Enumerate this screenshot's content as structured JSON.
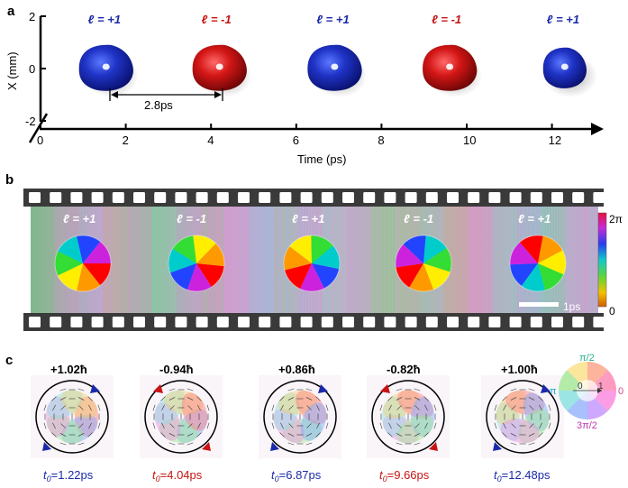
{
  "panel_a": {
    "label": "a",
    "y_axis_label": "X (mm)",
    "y_ticks": [
      "2",
      "0",
      "-2"
    ],
    "x_axis_label": "Time (ps)",
    "x_ticks": [
      "0",
      "2",
      "4",
      "6",
      "8",
      "10",
      "12"
    ],
    "period_label": "2.8ps",
    "pulses": [
      {
        "label": "ℓ = +1",
        "color": "#1a2aa8",
        "time": 1.6
      },
      {
        "label": "ℓ = -1",
        "color": "#c81414",
        "time": 4.2
      },
      {
        "label": "ℓ = +1",
        "color": "#1a2aa8",
        "time": 6.9
      },
      {
        "label": "ℓ = -1",
        "color": "#c81414",
        "time": 9.6
      },
      {
        "label": "ℓ = +1",
        "color": "#1a2aa8",
        "time": 12.3
      }
    ]
  },
  "panel_b": {
    "label": "b",
    "frame_labels": [
      "ℓ = +1",
      "ℓ = -1",
      "ℓ = +1",
      "ℓ = -1",
      "ℓ = +1"
    ],
    "colorbar_max": "2π",
    "colorbar_min": "0",
    "scale_bar_label": "1ps"
  },
  "panel_c": {
    "label": "c",
    "modes": [
      {
        "oam": "+1.02ħ",
        "t0": "t0=1.22ps",
        "t0_sym": "t",
        "t0_sub": "0",
        "t0_val": "=1.22ps",
        "color": "#1a2aa8"
      },
      {
        "oam": "-0.94ħ",
        "t0": "t0=4.04ps",
        "t0_sym": "t",
        "t0_sub": "0",
        "t0_val": "=4.04ps",
        "color": "#c81414"
      },
      {
        "oam": "+0.86ħ",
        "t0": "t0=6.87ps",
        "t0_sym": "t",
        "t0_sub": "0",
        "t0_val": "=6.87ps",
        "color": "#1a2aa8"
      },
      {
        "oam": "-0.82ħ",
        "t0": "t0=9.66ps",
        "t0_sym": "t",
        "t0_sub": "0",
        "t0_val": "=9.66ps",
        "color": "#c81414"
      },
      {
        "oam": "+1.00ħ",
        "t0": "t0=12.48ps",
        "t0_sym": "t",
        "t0_sub": "0",
        "t0_val": "=12.48ps",
        "color": "#1a2aa8"
      }
    ],
    "color_wheel": {
      "top": "π/2",
      "left": "π",
      "right": "0",
      "bottom": "3π/2",
      "center_left": "0",
      "center_right": "1"
    }
  }
}
